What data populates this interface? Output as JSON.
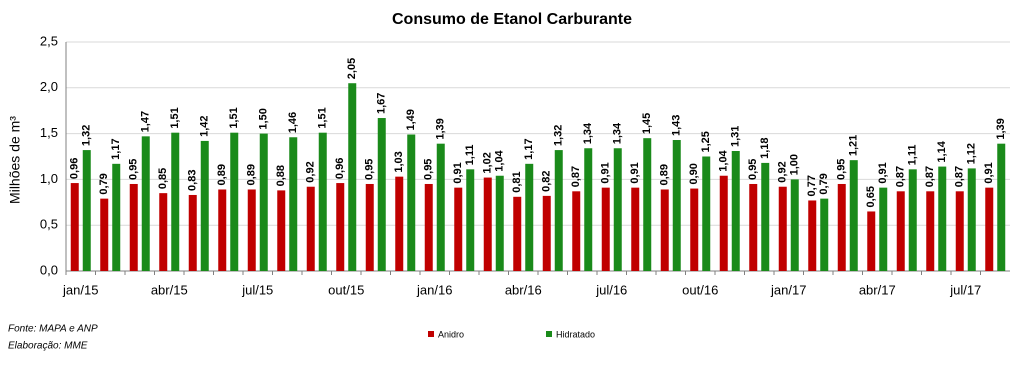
{
  "chart_data": {
    "type": "bar",
    "title": "Consumo de Etanol Carburante",
    "y_label": "Milhões de m³",
    "categories": [
      "jan/15",
      null,
      null,
      "abr/15",
      null,
      null,
      "jul/15",
      null,
      null,
      "out/15",
      null,
      null,
      "jan/16",
      null,
      null,
      "abr/16",
      null,
      null,
      "jul/16",
      null,
      null,
      "out/16",
      null,
      null,
      "jan/17",
      null,
      null,
      "abr/17",
      null,
      null,
      "jul/17",
      null
    ],
    "series": [
      {
        "name": "Anidro",
        "color": "#c00000",
        "values": [
          0.96,
          0.79,
          0.95,
          0.85,
          0.83,
          0.89,
          0.89,
          0.88,
          0.92,
          0.96,
          0.95,
          1.03,
          0.95,
          0.91,
          1.02,
          0.81,
          0.82,
          0.87,
          0.91,
          0.91,
          0.89,
          0.9,
          1.04,
          0.95,
          0.92,
          0.77,
          0.95,
          0.65,
          0.87,
          0.87,
          0.87,
          0.91
        ],
        "value_labels": [
          "0,96",
          "0,79",
          "0,95",
          "0,85",
          "0,83",
          "0,89",
          "0,89",
          "0,88",
          "0,92",
          "0,96",
          "0,95",
          "1,03",
          "0,95",
          "0,91",
          "1,02",
          "0,81",
          "0,82",
          "0,87",
          "0,91",
          "0,91",
          "0,89",
          "0,90",
          "1,04",
          "0,95",
          "0,92",
          "0,77",
          "0,95",
          "0,65",
          "0,87",
          "0,87",
          "0,87",
          "0,91"
        ]
      },
      {
        "name": "Hidratado",
        "color": "#1a8a1a",
        "values": [
          1.32,
          1.17,
          1.47,
          1.51,
          1.42,
          1.51,
          1.5,
          1.46,
          1.51,
          2.05,
          1.67,
          1.49,
          1.39,
          1.11,
          1.04,
          1.17,
          1.32,
          1.34,
          1.34,
          1.45,
          1.43,
          1.25,
          1.31,
          1.18,
          1.0,
          0.79,
          1.21,
          0.91,
          1.11,
          1.14,
          1.12,
          1.39
        ],
        "value_labels": [
          "1,32",
          "1,17",
          "1,47",
          "1,51",
          "1,42",
          "1,51",
          "1,50",
          "1,46",
          "1,51",
          "2,05",
          "1,67",
          "1,49",
          "1,39",
          "1,11",
          "1,04",
          "1,17",
          "1,32",
          "1,34",
          "1,34",
          "1,45",
          "1,43",
          "1,25",
          "1,31",
          "1,18",
          "1,00",
          "0,79",
          "1,21",
          "0,91",
          "1,11",
          "1,14",
          "1,12",
          "1,39"
        ]
      }
    ],
    "ylim": [
      0,
      2.5
    ],
    "yticks": [
      {
        "value": 0,
        "label": "0,0"
      },
      {
        "value": 0.5,
        "label": "0,5"
      },
      {
        "value": 1,
        "label": "1,0"
      },
      {
        "value": 1.5,
        "label": "1,5"
      },
      {
        "value": 2,
        "label": "2,0"
      },
      {
        "value": 2.5,
        "label": "2,5"
      }
    ],
    "grid": true,
    "source": "Fonte: MAPA e ANP",
    "credit": "Elaboração: MME"
  }
}
